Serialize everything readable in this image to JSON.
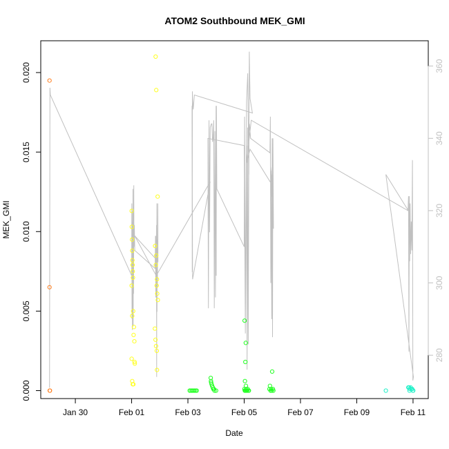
{
  "chart_data": {
    "type": "scatter",
    "title": "ATOM2 Southbound MEK_GMI",
    "xlabel": "Date",
    "ylabel": "MEK_GMI",
    "y2label": "",
    "xlim": [
      "2022-01-28T18:30",
      "2022-02-11T13:00"
    ],
    "ylim": [
      -0.0005,
      0.022
    ],
    "y2lim": [
      268,
      367
    ],
    "x_ticks": [
      {
        "date": "2022-01-30T00:00",
        "label": "Jan 30"
      },
      {
        "date": "2022-02-01T00:00",
        "label": "Feb 01"
      },
      {
        "date": "2022-02-03T00:00",
        "label": "Feb 03"
      },
      {
        "date": "2022-02-05T00:00",
        "label": "Feb 05"
      },
      {
        "date": "2022-02-07T00:00",
        "label": "Feb 07"
      },
      {
        "date": "2022-02-09T00:00",
        "label": "Feb 09"
      },
      {
        "date": "2022-02-11T00:00",
        "label": "Feb 11"
      }
    ],
    "y_ticks": [
      {
        "value": 0.0,
        "label": "0.000"
      },
      {
        "value": 0.005,
        "label": "0.005"
      },
      {
        "value": 0.01,
        "label": "0.010"
      },
      {
        "value": 0.015,
        "label": "0.015"
      },
      {
        "value": 0.02,
        "label": "0.020"
      }
    ],
    "y2_ticks": [
      {
        "value": 280,
        "label": "280"
      },
      {
        "value": 300,
        "label": "300"
      },
      {
        "value": 320,
        "label": "320"
      },
      {
        "value": 340,
        "label": "340"
      },
      {
        "value": 360,
        "label": "360"
      }
    ],
    "grid": false,
    "colors": {
      "line": "#c0c0c0",
      "right_axis": "#c0c0c0",
      "axis": "#000000"
    },
    "series": [
      {
        "kind": "points",
        "axis": "left",
        "color": "#ff7f20",
        "points": [
          [
            "2022-01-29T02:00",
            0.0195
          ],
          [
            "2022-01-29T02:00",
            0.0065
          ],
          [
            "2022-01-29T02:10",
            0.0
          ],
          [
            "2022-01-29T02:20",
            0.0
          ]
        ]
      },
      {
        "kind": "points",
        "axis": "left",
        "color": "#ffff20",
        "points": [
          [
            "2022-02-01T00:00",
            0.0113
          ],
          [
            "2022-02-01T00:10",
            0.0103
          ],
          [
            "2022-02-01T00:20",
            0.0095
          ],
          [
            "2022-02-01T00:30",
            0.0088
          ],
          [
            "2022-02-01T00:40",
            0.0082
          ],
          [
            "2022-02-01T00:50",
            0.0079
          ],
          [
            "2022-02-01T01:00",
            0.0075
          ],
          [
            "2022-02-01T01:10",
            0.0071
          ],
          [
            "2022-02-01T00:00",
            0.0066
          ],
          [
            "2022-02-01T01:20",
            0.005
          ],
          [
            "2022-02-01T00:30",
            0.0047
          ],
          [
            "2022-02-01T02:00",
            0.004
          ],
          [
            "2022-02-01T01:40",
            0.0035
          ],
          [
            "2022-02-01T02:20",
            0.0031
          ],
          [
            "2022-02-01T00:00",
            0.002
          ],
          [
            "2022-02-01T02:30",
            0.0018
          ],
          [
            "2022-02-01T02:40",
            0.0017
          ],
          [
            "2022-02-01T00:30",
            0.0006
          ],
          [
            "2022-02-01T01:00",
            0.0004
          ],
          [
            "2022-02-01T01:30",
            0.0004
          ],
          [
            "2022-02-01T20:30",
            0.021
          ],
          [
            "2022-02-01T21:00",
            0.0189
          ],
          [
            "2022-02-01T22:10",
            0.0122
          ],
          [
            "2022-02-01T20:00",
            0.0091
          ],
          [
            "2022-02-01T21:00",
            0.0085
          ],
          [
            "2022-02-01T20:40",
            0.0079
          ],
          [
            "2022-02-01T21:40",
            0.007
          ],
          [
            "2022-02-01T21:20",
            0.0066
          ],
          [
            "2022-02-01T21:50",
            0.0061
          ],
          [
            "2022-02-01T22:20",
            0.0057
          ],
          [
            "2022-02-01T19:50",
            0.0039
          ],
          [
            "2022-02-01T20:20",
            0.0032
          ],
          [
            "2022-02-01T20:50",
            0.0028
          ],
          [
            "2022-02-01T21:30",
            0.0025
          ],
          [
            "2022-02-01T21:40",
            0.0013
          ]
        ]
      },
      {
        "kind": "points",
        "axis": "left",
        "color": "#20ff20",
        "points": [
          [
            "2022-02-03T01:30",
            0.0
          ],
          [
            "2022-02-03T02:30",
            0.0
          ],
          [
            "2022-02-03T03:30",
            0.0
          ],
          [
            "2022-02-03T04:30",
            0.0
          ],
          [
            "2022-02-03T05:30",
            0.0
          ],
          [
            "2022-02-03T06:30",
            0.0
          ],
          [
            "2022-02-03T07:30",
            0.0
          ],
          [
            "2022-02-03T19:30",
            0.0008
          ],
          [
            "2022-02-03T19:40",
            0.0006
          ],
          [
            "2022-02-03T19:50",
            0.0005
          ],
          [
            "2022-02-03T20:10",
            0.0004
          ],
          [
            "2022-02-03T20:40",
            0.0003
          ],
          [
            "2022-02-03T21:10",
            0.0002
          ],
          [
            "2022-02-03T21:40",
            0.0001
          ],
          [
            "2022-02-03T22:10",
            0.0001
          ],
          [
            "2022-02-03T22:40",
            0.0
          ],
          [
            "2022-02-04T00:00",
            0.0
          ],
          [
            "2022-02-05T00:20",
            0.0044
          ],
          [
            "2022-02-05T01:20",
            0.003
          ],
          [
            "2022-02-05T01:00",
            0.0018
          ],
          [
            "2022-02-05T00:40",
            0.0006
          ],
          [
            "2022-02-05T01:30",
            0.0003
          ],
          [
            "2022-02-05T01:40",
            0.0001
          ],
          [
            "2022-02-05T00:10",
            0.0001
          ],
          [
            "2022-02-05T00:30",
            0.0
          ],
          [
            "2022-02-05T00:50",
            0.0
          ],
          [
            "2022-02-05T01:10",
            0.0
          ],
          [
            "2022-02-05T02:00",
            0.0
          ],
          [
            "2022-02-05T02:30",
            0.0
          ],
          [
            "2022-02-05T03:00",
            0.0001
          ],
          [
            "2022-02-05T03:40",
            0.0
          ],
          [
            "2022-02-05T04:00",
            0.0
          ],
          [
            "2022-02-05T22:00",
            0.0003
          ],
          [
            "2022-02-05T23:50",
            0.0012
          ],
          [
            "2022-02-05T21:30",
            0.0001
          ],
          [
            "2022-02-05T22:30",
            0.0
          ],
          [
            "2022-02-05T23:00",
            0.0001
          ],
          [
            "2022-02-05T23:30",
            0.0
          ],
          [
            "2022-02-06T00:30",
            0.0001
          ],
          [
            "2022-02-06T00:50",
            0.0
          ]
        ]
      },
      {
        "kind": "points",
        "axis": "left",
        "color": "#20f0c8",
        "points": [
          [
            "2022-02-10T00:50",
            0.0
          ],
          [
            "2022-02-10T20:00",
            0.0002
          ],
          [
            "2022-02-10T20:40",
            0.0002
          ],
          [
            "2022-02-10T21:20",
            0.0001
          ],
          [
            "2022-02-10T22:00",
            0.0002
          ],
          [
            "2022-02-10T22:40",
            0.0001
          ],
          [
            "2022-02-10T23:20",
            0.0001
          ],
          [
            "2022-02-10T23:50",
            0.0
          ],
          [
            "2022-02-11T00:10",
            0.0
          ],
          [
            "2022-02-10T21:00",
            0.0
          ]
        ]
      },
      {
        "kind": "line",
        "axis": "right",
        "color": "#c0c0c0",
        "points": [
          [
            "2022-01-29T02:00",
            271
          ],
          [
            "2022-01-29T02:20",
            354
          ],
          [
            "2022-01-29T02:40",
            352
          ],
          [
            "2022-02-01T00:00",
            302
          ],
          [
            "2022-02-01T00:10",
            322
          ],
          [
            "2022-02-01T00:20",
            290
          ],
          [
            "2022-02-01T00:30",
            317
          ],
          [
            "2022-02-01T00:40",
            287
          ],
          [
            "2022-02-01T00:50",
            320
          ],
          [
            "2022-02-01T01:00",
            292
          ],
          [
            "2022-02-01T01:10",
            326
          ],
          [
            "2022-02-01T01:20",
            288
          ],
          [
            "2022-02-01T01:30",
            320
          ],
          [
            "2022-02-01T01:40",
            297
          ],
          [
            "2022-02-01T01:50",
            327
          ],
          [
            "2022-02-01T02:00",
            310
          ],
          [
            "2022-02-01T02:20",
            316
          ],
          [
            "2022-02-01T02:40",
            309
          ],
          [
            "2022-02-01T20:00",
            304
          ],
          [
            "2022-02-01T20:20",
            313
          ],
          [
            "2022-02-01T20:40",
            296
          ],
          [
            "2022-02-01T20:50",
            313
          ],
          [
            "2022-02-01T21:00",
            300
          ],
          [
            "2022-02-01T21:10",
            316
          ],
          [
            "2022-02-01T21:20",
            274
          ],
          [
            "2022-02-01T21:30",
            322
          ],
          [
            "2022-02-01T21:40",
            292
          ],
          [
            "2022-02-01T21:50",
            312
          ],
          [
            "2022-02-01T22:00",
            299
          ],
          [
            "2022-02-01T22:20",
            322
          ],
          [
            "2022-02-01T22:30",
            306
          ],
          [
            "2022-02-01T02:40",
            313
          ],
          [
            "2022-02-01T21:00",
            302
          ],
          [
            "2022-02-03T19:00",
            328
          ],
          [
            "2022-02-03T04:00",
            301
          ],
          [
            "2022-02-03T03:30",
            349
          ],
          [
            "2022-02-03T03:40",
            303
          ],
          [
            "2022-02-03T03:50",
            353
          ],
          [
            "2022-02-03T04:00",
            351
          ],
          [
            "2022-02-03T04:30",
            348
          ],
          [
            "2022-02-03T05:30",
            352
          ],
          [
            "2022-02-05T07:00",
            347
          ],
          [
            "2022-02-05T05:00",
            351
          ],
          [
            "2022-02-05T04:20",
            364
          ],
          [
            "2022-02-05T04:00",
            330
          ],
          [
            "2022-02-05T03:00",
            358
          ],
          [
            "2022-02-05T02:00",
            350
          ],
          [
            "2022-02-05T01:00",
            288
          ],
          [
            "2022-02-05T00:20",
            346
          ],
          [
            "2022-02-05T00:00",
            310
          ],
          [
            "2022-02-04T00:40",
            326
          ],
          [
            "2022-02-04T00:20",
            349
          ],
          [
            "2022-02-04T00:10",
            302
          ],
          [
            "2022-02-04T00:00",
            349
          ],
          [
            "2022-02-03T23:30",
            296
          ],
          [
            "2022-02-03T23:00",
            342
          ],
          [
            "2022-02-03T22:30",
            293
          ],
          [
            "2022-02-03T22:00",
            345
          ],
          [
            "2022-02-03T21:30",
            340
          ],
          [
            "2022-02-03T21:00",
            339
          ],
          [
            "2022-02-03T20:30",
            344
          ],
          [
            "2022-02-03T20:00",
            344
          ],
          [
            "2022-02-03T19:00",
            343
          ],
          [
            "2022-02-03T18:30",
            314
          ],
          [
            "2022-02-03T18:00",
            345
          ],
          [
            "2022-02-03T17:30",
            293
          ],
          [
            "2022-02-03T17:00",
            340
          ],
          [
            "2022-02-05T00:00",
            338
          ],
          [
            "2022-02-05T01:00",
            286
          ],
          [
            "2022-02-05T02:00",
            338
          ],
          [
            "2022-02-05T02:30",
            276
          ],
          [
            "2022-02-05T03:00",
            343
          ],
          [
            "2022-02-05T03:30",
            283
          ],
          [
            "2022-02-05T04:00",
            340
          ],
          [
            "2022-02-05T04:30",
            344
          ],
          [
            "2022-02-05T05:30",
            340
          ],
          [
            "2022-02-05T22:00",
            336
          ],
          [
            "2022-02-05T22:20",
            346
          ],
          [
            "2022-02-05T22:40",
            300
          ],
          [
            "2022-02-05T23:00",
            331
          ],
          [
            "2022-02-05T23:30",
            290
          ],
          [
            "2022-02-05T23:50",
            340
          ],
          [
            "2022-02-06T00:10",
            285
          ],
          [
            "2022-02-06T00:30",
            340
          ],
          [
            "2022-02-06T00:50",
            321
          ],
          [
            "2022-02-06T01:00",
            315
          ],
          [
            "2022-02-05T22:30",
            332
          ],
          [
            "2022-02-06T00:00",
            327
          ],
          [
            "2022-02-05T05:00",
            337
          ],
          [
            "2022-02-05T02:00",
            333
          ],
          [
            "2022-02-05T06:00",
            345
          ],
          [
            "2022-02-10T19:40",
            320
          ],
          [
            "2022-02-10T20:10",
            324
          ],
          [
            "2022-02-10T20:30",
            281
          ],
          [
            "2022-02-10T20:50",
            324
          ],
          [
            "2022-02-10T21:10",
            306
          ],
          [
            "2022-02-10T21:30",
            322
          ],
          [
            "2022-02-10T22:00",
            308
          ],
          [
            "2022-02-10T22:30",
            317
          ],
          [
            "2022-02-10T23:00",
            309
          ],
          [
            "2022-02-10T23:30",
            334
          ],
          [
            "2022-02-10T23:50",
            273
          ],
          [
            "2022-02-11T00:20",
            274
          ],
          [
            "2022-02-10T00:50",
            330
          ],
          [
            "2022-02-10T20:00",
            320
          ]
        ]
      }
    ]
  }
}
